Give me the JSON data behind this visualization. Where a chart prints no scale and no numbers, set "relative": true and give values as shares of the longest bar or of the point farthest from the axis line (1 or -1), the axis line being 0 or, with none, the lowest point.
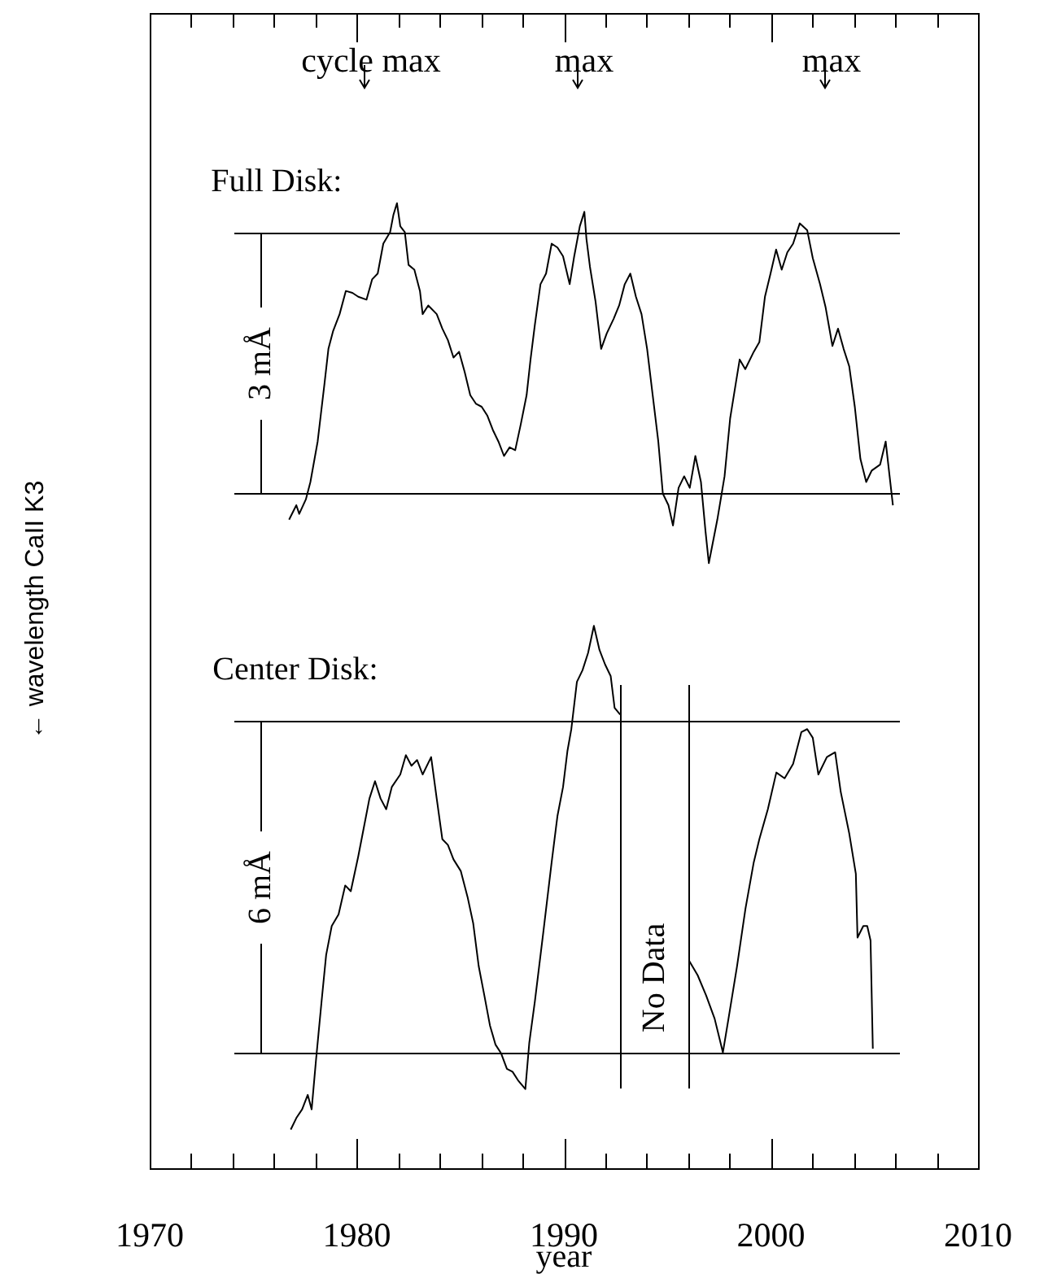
{
  "chart_data": {
    "type": "line",
    "relative": true,
    "xlabel": "year",
    "ylabel": "← wavelength CaII K3",
    "xlim": [
      1970,
      2010
    ],
    "xticks": [
      1970,
      {
        "value": 1972,
        "label": null
      },
      {
        "value": 1974,
        "label": null
      },
      {
        "value": 1976,
        "label": null
      },
      {
        "value": 1978,
        "label": null
      },
      1980,
      {
        "value": 1982,
        "label": null
      },
      {
        "value": 1984,
        "label": null
      },
      {
        "value": 1986,
        "label": null
      },
      {
        "value": 1988,
        "label": null
      },
      1990,
      {
        "value": 1992,
        "label": null
      },
      {
        "value": 1994,
        "label": null
      },
      {
        "value": 1996,
        "label": null
      },
      {
        "value": 1998,
        "label": null
      },
      2000,
      {
        "value": 2002,
        "label": null
      },
      {
        "value": 2004,
        "label": null
      },
      {
        "value": 2006,
        "label": null
      },
      {
        "value": 2008,
        "label": null
      },
      2010
    ],
    "marker": "none",
    "line_style": "solid",
    "series": [
      {
        "name": "Full Disk:",
        "color": "#000000",
        "x": [
          1976.73,
          1977.08,
          1977.22,
          1977.54,
          1977.76,
          1978.11,
          1978.44,
          1978.63,
          1978.85,
          1979.17,
          1979.47,
          1979.79,
          1980.07,
          1980.47,
          1980.74,
          1981.01,
          1981.28,
          1981.61,
          1981.77,
          1981.94,
          1982.1,
          1982.32,
          1982.5,
          1982.78,
          1983.05,
          1983.18,
          1983.45,
          1983.86,
          1984.13,
          1984.4,
          1984.67,
          1984.94,
          1985.21,
          1985.48,
          1985.76,
          1986.03,
          1986.3,
          1986.57,
          1986.84,
          1987.11,
          1987.38,
          1987.65,
          1987.92,
          1988.2,
          1988.39,
          1988.6,
          1988.87,
          1989.14,
          1989.41,
          1989.69,
          1989.96,
          1990.28,
          1990.5,
          1990.77,
          1990.99,
          1991.09,
          1991.26,
          1991.53,
          1991.8,
          1992.07,
          1992.4,
          1992.67,
          1992.94,
          1993.21,
          1993.48,
          1993.75,
          1994.02,
          1994.29,
          1994.56,
          1994.78,
          1995.05,
          1995.27,
          1995.54,
          1995.81,
          1996.08,
          1996.35,
          1996.62,
          1996.84,
          1997.0,
          1997.41,
          1997.76,
          1998.03,
          1998.3,
          1998.49,
          1998.76,
          1999.17,
          1999.44,
          1999.71,
          1999.98,
          2000.25,
          2000.52,
          2000.79,
          2001.07,
          2001.39,
          2001.75,
          2002.02,
          2002.37,
          2002.64,
          2002.97,
          2003.24,
          2003.51,
          2003.78,
          2004.05,
          2004.32,
          2004.6,
          2004.87,
          2005.27,
          2005.54,
          2005.73,
          2005.89
        ],
        "values": [
          0.672,
          0.687,
          0.678,
          0.693,
          0.711,
          0.753,
          0.813,
          0.849,
          0.867,
          0.885,
          0.909,
          0.907,
          0.903,
          0.9,
          0.921,
          0.927,
          0.958,
          0.97,
          0.988,
          1.0,
          0.976,
          0.97,
          0.936,
          0.931,
          0.909,
          0.885,
          0.894,
          0.885,
          0.87,
          0.858,
          0.84,
          0.846,
          0.825,
          0.801,
          0.792,
          0.789,
          0.78,
          0.765,
          0.753,
          0.738,
          0.747,
          0.744,
          0.771,
          0.801,
          0.838,
          0.874,
          0.916,
          0.927,
          0.958,
          0.954,
          0.945,
          0.916,
          0.945,
          0.976,
          0.991,
          0.963,
          0.934,
          0.898,
          0.849,
          0.865,
          0.88,
          0.894,
          0.916,
          0.927,
          0.903,
          0.885,
          0.849,
          0.801,
          0.753,
          0.699,
          0.687,
          0.666,
          0.705,
          0.717,
          0.705,
          0.738,
          0.711,
          0.66,
          0.627,
          0.672,
          0.717,
          0.777,
          0.813,
          0.838,
          0.828,
          0.846,
          0.856,
          0.903,
          0.927,
          0.952,
          0.931,
          0.949,
          0.958,
          0.979,
          0.972,
          0.943,
          0.916,
          0.892,
          0.852,
          0.87,
          0.849,
          0.831,
          0.789,
          0.735,
          0.711,
          0.723,
          0.729,
          0.753,
          0.717,
          0.687
        ]
      },
      {
        "name": "Center Disk:",
        "color": "#000000",
        "x": [
          1976.81,
          1977.08,
          1977.36,
          1977.63,
          1977.82,
          1978.03,
          1978.3,
          1978.52,
          1978.79,
          1979.12,
          1979.44,
          1979.71,
          1980.07,
          1980.34,
          1980.61,
          1980.88,
          1981.15,
          1981.42,
          1981.69,
          1982.1,
          1982.37,
          1982.64,
          1982.91,
          1983.18,
          1983.59,
          1983.86,
          1984.13,
          1984.4,
          1984.67,
          1985.02,
          1985.35,
          1985.62,
          1985.89,
          1986.16,
          1986.43,
          1986.7,
          1986.97,
          1987.25,
          1987.52,
          1987.79,
          1988.14,
          1988.33,
          1988.6,
          1989.01,
          1989.41,
          1989.69,
          1989.96,
          1990.17,
          1990.36,
          1990.63,
          1990.9,
          1991.17,
          1991.45,
          1991.72,
          1991.99,
          1992.26,
          1992.45,
          1992.72,
          1994.5,
          1996.05,
          1996.46,
          1996.87,
          1997.28,
          1997.68,
          1997.95,
          1998.36,
          1998.77,
          1999.17,
          1999.44,
          1999.85,
          2000.26,
          2000.66,
          2001.07,
          2001.47,
          2001.75,
          2002.02,
          2002.29,
          2002.7,
          2003.1,
          2003.37,
          2003.78,
          2004.1,
          2004.18,
          2004.46,
          2004.65,
          2004.81,
          2004.92
        ],
        "values": [
          0.04,
          0.052,
          0.061,
          0.076,
          0.061,
          0.112,
          0.173,
          0.221,
          0.251,
          0.263,
          0.293,
          0.287,
          0.323,
          0.353,
          0.383,
          0.401,
          0.383,
          0.372,
          0.395,
          0.408,
          0.428,
          0.417,
          0.423,
          0.408,
          0.426,
          0.383,
          0.341,
          0.335,
          0.32,
          0.308,
          0.281,
          0.254,
          0.209,
          0.179,
          0.148,
          0.128,
          0.119,
          0.103,
          0.1,
          0.091,
          0.082,
          0.13,
          0.173,
          0.245,
          0.317,
          0.365,
          0.395,
          0.432,
          0.455,
          0.504,
          0.516,
          0.534,
          0.562,
          0.537,
          0.522,
          0.51,
          0.477,
          0.47,
          null,
          0.215,
          0.2,
          0.179,
          0.155,
          0.12,
          0.155,
          0.209,
          0.269,
          0.317,
          0.341,
          0.372,
          0.41,
          0.404,
          0.419,
          0.452,
          0.455,
          0.446,
          0.408,
          0.426,
          0.431,
          0.39,
          0.347,
          0.305,
          0.239,
          0.251,
          0.251,
          0.236,
          0.124
        ]
      }
    ],
    "ref_lines": [
      {
        "axis": "y",
        "value": 0.97,
        "label": null
      },
      {
        "axis": "y",
        "value": 0.699,
        "label": "3 mÅ"
      },
      {
        "axis": "y",
        "value": 0.464,
        "label": null
      },
      {
        "axis": "y",
        "value": 0.12,
        "label": "6 mÅ"
      },
      {
        "axis": "x",
        "value": 1992.75,
        "label": "No Data"
      },
      {
        "axis": "x",
        "value": 1996,
        "label": null
      }
    ],
    "annotations": [
      "cycle max",
      "max",
      "max"
    ]
  }
}
